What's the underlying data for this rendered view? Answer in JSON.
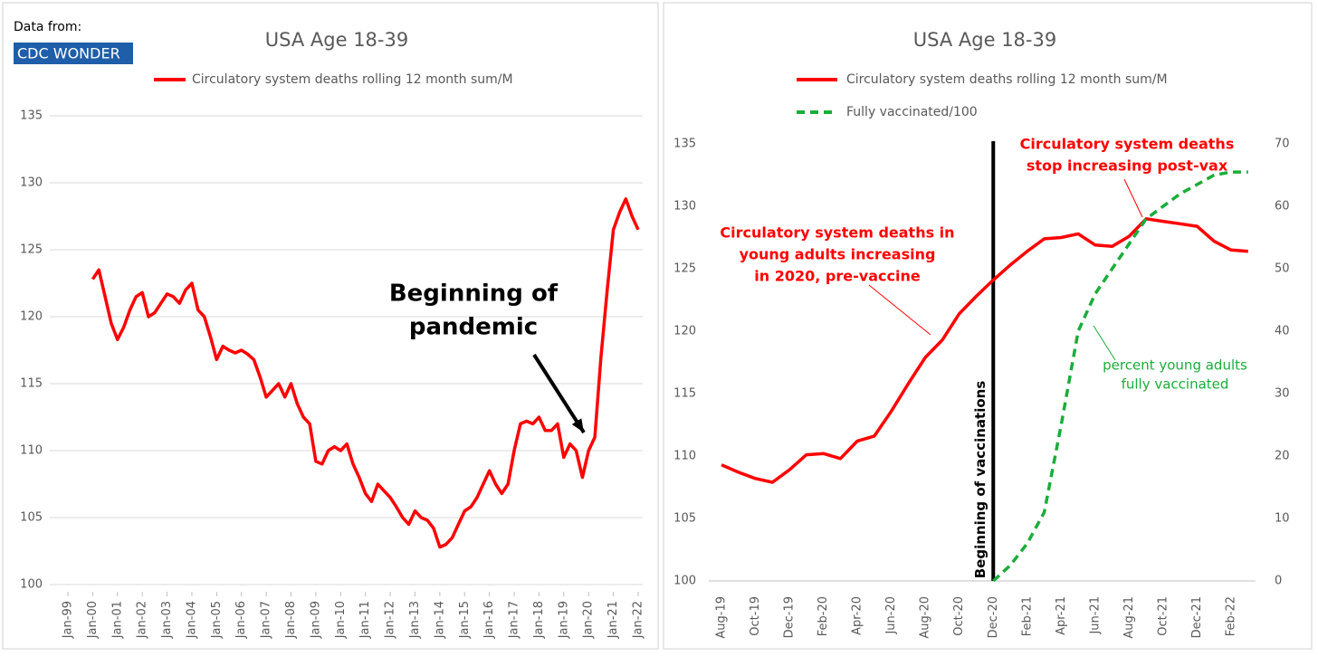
{
  "chart_data": [
    {
      "type": "line",
      "title": "USA Age 18-39",
      "source_label": "Data from:",
      "source": "CDC WONDER",
      "x": [
        "Jan-00",
        "Apr-00",
        "Jul-00",
        "Oct-00",
        "Jan-01",
        "Apr-01",
        "Jul-01",
        "Oct-01",
        "Jan-02",
        "Apr-02",
        "Jul-02",
        "Oct-02",
        "Jan-03",
        "Apr-03",
        "Jul-03",
        "Oct-03",
        "Jan-04",
        "Apr-04",
        "Jul-04",
        "Oct-04",
        "Jan-05",
        "Apr-05",
        "Jul-05",
        "Oct-05",
        "Jan-06",
        "Apr-06",
        "Jul-06",
        "Oct-06",
        "Jan-07",
        "Apr-07",
        "Jul-07",
        "Oct-07",
        "Jan-08",
        "Apr-08",
        "Jul-08",
        "Oct-08",
        "Jan-09",
        "Apr-09",
        "Jul-09",
        "Oct-09",
        "Jan-10",
        "Apr-10",
        "Jul-10",
        "Oct-10",
        "Jan-11",
        "Apr-11",
        "Jul-11",
        "Oct-11",
        "Jan-12",
        "Apr-12",
        "Jul-12",
        "Oct-12",
        "Jan-13",
        "Apr-13",
        "Jul-13",
        "Oct-13",
        "Jan-14",
        "Apr-14",
        "Jul-14",
        "Oct-14",
        "Jan-15",
        "Apr-15",
        "Jul-15",
        "Oct-15",
        "Jan-16",
        "Apr-16",
        "Jul-16",
        "Oct-16",
        "Jan-17",
        "Apr-17",
        "Jul-17",
        "Oct-17",
        "Jan-18",
        "Apr-18",
        "Jul-18",
        "Oct-18",
        "Jan-19",
        "Apr-19",
        "Jul-19",
        "Oct-19",
        "Jan-20",
        "Apr-20",
        "Jul-20",
        "Oct-20",
        "Jan-21",
        "Apr-21",
        "Jul-21",
        "Oct-21",
        "Jan-22"
      ],
      "series": [
        {
          "name": "Circulatory system deaths rolling 12 month sum/M",
          "color": "#ff0000",
          "values": [
            122.8,
            123.5,
            121.5,
            119.5,
            118.3,
            119.2,
            120.5,
            121.5,
            121.8,
            120.0,
            120.3,
            121.0,
            121.7,
            121.5,
            121.0,
            122.0,
            122.5,
            120.5,
            120.0,
            118.5,
            116.8,
            117.8,
            117.5,
            117.3,
            117.5,
            117.2,
            116.8,
            115.5,
            114.0,
            114.5,
            115.0,
            114.0,
            115.0,
            113.5,
            112.5,
            112.0,
            109.2,
            109.0,
            110.0,
            110.3,
            110.0,
            110.5,
            109.0,
            108.0,
            106.8,
            106.2,
            107.5,
            107.0,
            106.5,
            105.8,
            105.0,
            104.5,
            105.5,
            105.0,
            104.8,
            104.2,
            102.8,
            103.0,
            103.5,
            104.5,
            105.5,
            105.8,
            106.5,
            107.5,
            108.5,
            107.5,
            106.8,
            107.5,
            110.0,
            112.0,
            112.2,
            112.0,
            112.5,
            111.5,
            111.5,
            112.0,
            109.5,
            110.5,
            110.0,
            108.0,
            110.0,
            111.0,
            117.0,
            122.0,
            126.5,
            127.8,
            128.8,
            127.5,
            126.5
          ]
        }
      ],
      "ylim": [
        100,
        135
      ],
      "yticks": [
        100,
        105,
        110,
        115,
        120,
        125,
        130,
        135
      ],
      "xticks": [
        "Jan-99",
        "Jan-00",
        "Jan-01",
        "Jan-02",
        "Jan-03",
        "Jan-04",
        "Jan-05",
        "Jan-06",
        "Jan-07",
        "Jan-08",
        "Jan-09",
        "Jan-10",
        "Jan-11",
        "Jan-12",
        "Jan-13",
        "Jan-14",
        "Jan-15",
        "Jan-16",
        "Jan-17",
        "Jan-18",
        "Jan-19",
        "Jan-20",
        "Jan-21",
        "Jan-22"
      ],
      "grid": true,
      "annotations": [
        {
          "lines": [
            "Beginning of",
            "pandemic"
          ],
          "color": "#000000"
        }
      ]
    },
    {
      "type": "line",
      "title": "USA Age 18-39",
      "categories": [
        "Aug-19",
        null,
        "Oct-19",
        null,
        "Dec-19",
        null,
        "Feb-20",
        null,
        "Apr-20",
        null,
        "Jun-20",
        null,
        "Aug-20",
        null,
        "Oct-20",
        null,
        "Dec-20",
        null,
        "Feb-21",
        null,
        "Apr-21",
        null,
        "Jun-21",
        null,
        "Aug-21",
        null,
        "Oct-21",
        null,
        "Dec-21",
        null,
        "Feb-22",
        null
      ],
      "series": [
        {
          "name": "Circulatory system deaths rolling 12 month sum/M",
          "color": "#ff0000",
          "line_style": "solid",
          "values": [
            109.3,
            108.7,
            108.2,
            107.9,
            108.9,
            110.1,
            110.2,
            109.8,
            111.2,
            111.6,
            113.6,
            115.8,
            117.9,
            119.3,
            121.4,
            122.8,
            124.1,
            125.3,
            126.4,
            127.4,
            127.5,
            127.8,
            126.9,
            126.8,
            127.6,
            129.0,
            128.8,
            128.6,
            128.4,
            127.2,
            126.5,
            126.4
          ]
        },
        {
          "name": "Fully vaccinated/100",
          "color": "#1aad3a",
          "line_style": "dashed",
          "axis": "y2",
          "values": [
            null,
            null,
            null,
            null,
            null,
            null,
            null,
            null,
            null,
            null,
            null,
            null,
            null,
            null,
            null,
            null,
            0,
            2.5,
            6,
            11,
            25,
            40,
            46,
            50,
            54,
            58,
            60,
            62,
            63.5,
            65,
            65.5,
            65.5
          ]
        }
      ],
      "ylim": [
        100,
        135
      ],
      "yticks": [
        100,
        105,
        110,
        115,
        120,
        125,
        130,
        135
      ],
      "y2lim": [
        0,
        70
      ],
      "y2ticks": [
        0,
        10,
        20,
        30,
        40,
        50,
        60,
        70
      ],
      "grid": false,
      "vline": {
        "at": "Dec-20",
        "label": "Beginning of vaccinations"
      },
      "annotations": [
        {
          "lines": [
            "Circulatory system deaths in",
            "young adults increasing",
            "in 2020, pre-vaccine"
          ],
          "color": "#ff0000"
        },
        {
          "lines": [
            "Circulatory system deaths",
            "stop increasing post-vax"
          ],
          "color": "#ff0000"
        },
        {
          "lines": [
            "percent young adults",
            "fully vaccinated"
          ],
          "color": "#1aad3a"
        }
      ]
    }
  ]
}
